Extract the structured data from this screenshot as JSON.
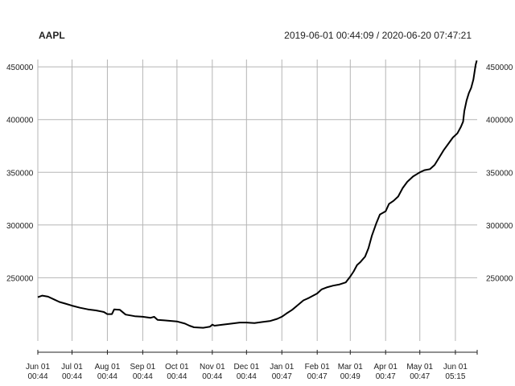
{
  "chart_data": {
    "type": "line",
    "title": "AAPL",
    "subtitle": "2019-06-01 00:44:09 / 2020-06-20 07:47:21",
    "grid": true,
    "x_range": [
      "2019-06-01 00:44",
      "2020-06-20 07:47"
    ],
    "ylim": [
      190000,
      457000
    ],
    "yticks": [
      250000,
      300000,
      350000,
      400000,
      450000
    ],
    "xticks": [
      {
        "t": "2019-06-01 00:44",
        "line1": "Jun 01",
        "line2": "00:44"
      },
      {
        "t": "2019-07-01 00:44",
        "line1": "Jul 01",
        "line2": "00:44"
      },
      {
        "t": "2019-08-01 00:44",
        "line1": "Aug 01",
        "line2": "00:44"
      },
      {
        "t": "2019-09-01 00:44",
        "line1": "Sep 01",
        "line2": "00:44"
      },
      {
        "t": "2019-10-01 00:44",
        "line1": "Oct 01",
        "line2": "00:44"
      },
      {
        "t": "2019-11-01 00:44",
        "line1": "Nov 01",
        "line2": "00:44"
      },
      {
        "t": "2019-12-01 00:44",
        "line1": "Dec 01",
        "line2": "00:44"
      },
      {
        "t": "2020-01-01 00:47",
        "line1": "Jan 01",
        "line2": "00:47"
      },
      {
        "t": "2020-02-01 00:47",
        "line1": "Feb 01",
        "line2": "00:47"
      },
      {
        "t": "2020-03-01 00:49",
        "line1": "Mar 01",
        "line2": "00:49"
      },
      {
        "t": "2020-04-01 00:47",
        "line1": "Apr 01",
        "line2": "00:47"
      },
      {
        "t": "2020-05-01 00:47",
        "line1": "May 01",
        "line2": "00:47"
      },
      {
        "t": "2020-06-01 05:15",
        "line1": "Jun 01",
        "line2": "05:15"
      }
    ],
    "series": [
      {
        "color": "#000000",
        "points": [
          [
            "2019-06-01",
            231500
          ],
          [
            "2019-06-05",
            233000
          ],
          [
            "2019-06-10",
            232000
          ],
          [
            "2019-06-15",
            229500
          ],
          [
            "2019-06-20",
            227000
          ],
          [
            "2019-06-25",
            225500
          ],
          [
            "2019-07-01",
            223500
          ],
          [
            "2019-07-08",
            221500
          ],
          [
            "2019-07-15",
            220000
          ],
          [
            "2019-07-22",
            219000
          ],
          [
            "2019-07-29",
            217500
          ],
          [
            "2019-08-01",
            215500
          ],
          [
            "2019-08-05",
            215500
          ],
          [
            "2019-08-07",
            220000
          ],
          [
            "2019-08-12",
            219500
          ],
          [
            "2019-08-17",
            215000
          ],
          [
            "2019-08-25",
            213500
          ],
          [
            "2019-09-01",
            213000
          ],
          [
            "2019-09-08",
            212000
          ],
          [
            "2019-09-11",
            213000
          ],
          [
            "2019-09-14",
            210000
          ],
          [
            "2019-09-20",
            209500
          ],
          [
            "2019-10-01",
            208500
          ],
          [
            "2019-10-08",
            206500
          ],
          [
            "2019-10-12",
            204500
          ],
          [
            "2019-10-16",
            203000
          ],
          [
            "2019-10-24",
            202500
          ],
          [
            "2019-10-30",
            203500
          ],
          [
            "2019-11-01",
            205500
          ],
          [
            "2019-11-03",
            204500
          ],
          [
            "2019-11-10",
            205500
          ],
          [
            "2019-11-18",
            206500
          ],
          [
            "2019-11-25",
            207500
          ],
          [
            "2019-12-01",
            207500
          ],
          [
            "2019-12-08",
            207000
          ],
          [
            "2019-12-15",
            208000
          ],
          [
            "2019-12-22",
            209000
          ],
          [
            "2019-12-28",
            211000
          ],
          [
            "2020-01-01",
            213000
          ],
          [
            "2020-01-05",
            216000
          ],
          [
            "2020-01-10",
            219500
          ],
          [
            "2020-01-15",
            224000
          ],
          [
            "2020-01-20",
            228500
          ],
          [
            "2020-01-25",
            231000
          ],
          [
            "2020-02-01",
            235000
          ],
          [
            "2020-02-05",
            239000
          ],
          [
            "2020-02-10",
            241000
          ],
          [
            "2020-02-15",
            242500
          ],
          [
            "2020-02-20",
            243500
          ],
          [
            "2020-02-26",
            245500
          ],
          [
            "2020-03-01",
            251000
          ],
          [
            "2020-03-04",
            256000
          ],
          [
            "2020-03-07",
            262000
          ],
          [
            "2020-03-10",
            265000
          ],
          [
            "2020-03-14",
            270000
          ],
          [
            "2020-03-17",
            278000
          ],
          [
            "2020-03-20",
            290000
          ],
          [
            "2020-03-24",
            302000
          ],
          [
            "2020-03-27",
            310000
          ],
          [
            "2020-04-01",
            313000
          ],
          [
            "2020-04-04",
            320000
          ],
          [
            "2020-04-08",
            323000
          ],
          [
            "2020-04-12",
            327000
          ],
          [
            "2020-04-16",
            335000
          ],
          [
            "2020-04-20",
            341000
          ],
          [
            "2020-04-25",
            346000
          ],
          [
            "2020-05-01",
            350000
          ],
          [
            "2020-05-05",
            352000
          ],
          [
            "2020-05-10",
            353000
          ],
          [
            "2020-05-14",
            357000
          ],
          [
            "2020-05-18",
            364000
          ],
          [
            "2020-05-22",
            371000
          ],
          [
            "2020-05-26",
            377000
          ],
          [
            "2020-05-30",
            383000
          ],
          [
            "2020-06-03",
            387000
          ],
          [
            "2020-06-06",
            393000
          ],
          [
            "2020-06-08",
            398000
          ],
          [
            "2020-06-09",
            408000
          ],
          [
            "2020-06-11",
            418000
          ],
          [
            "2020-06-13",
            425000
          ],
          [
            "2020-06-15",
            430000
          ],
          [
            "2020-06-17",
            438000
          ],
          [
            "2020-06-18",
            445000
          ],
          [
            "2020-06-19",
            452000
          ],
          [
            "2020-06-20",
            456000
          ]
        ]
      }
    ]
  }
}
